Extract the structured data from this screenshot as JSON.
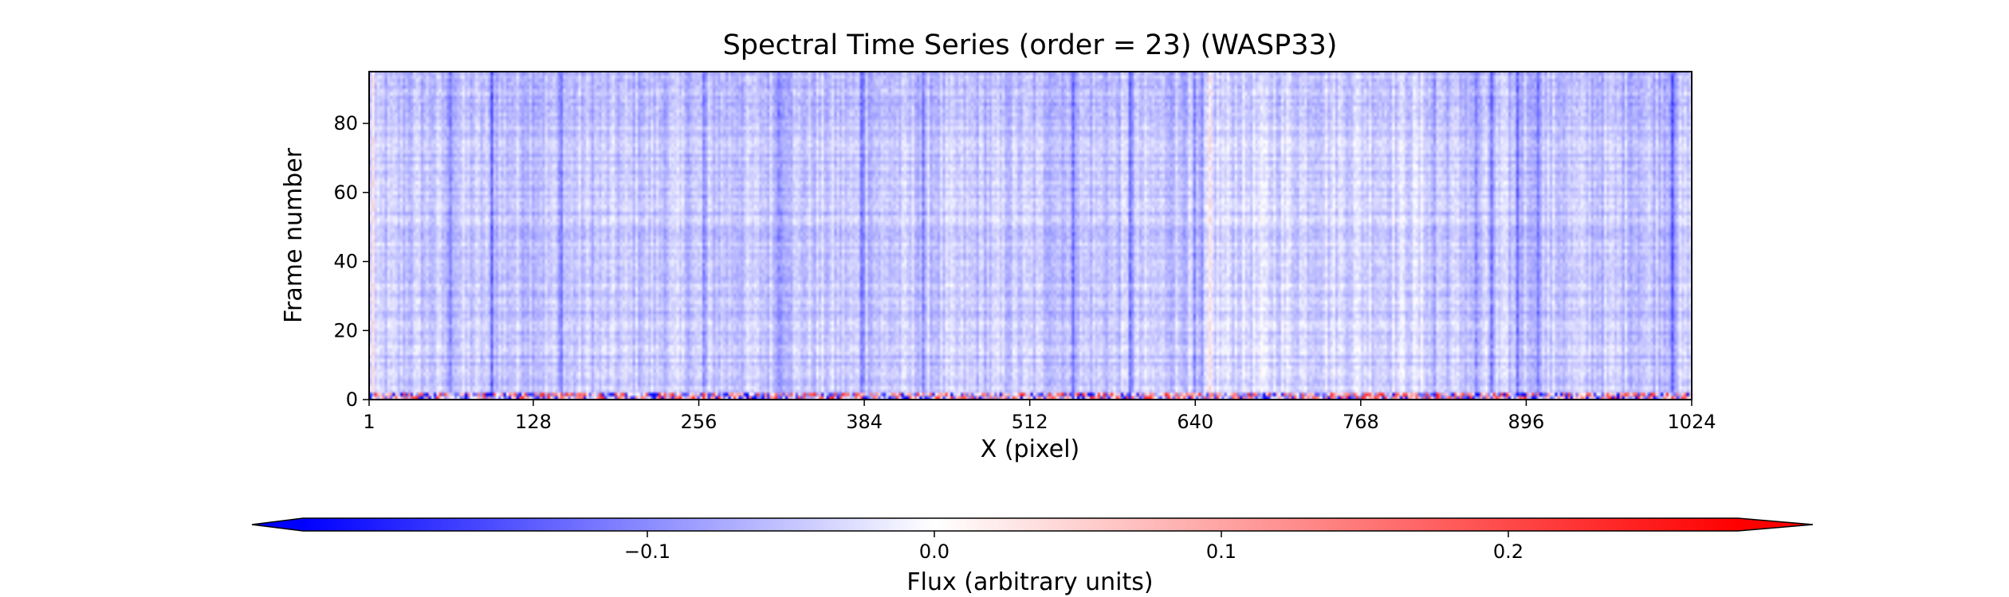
{
  "chart_data": {
    "type": "heatmap",
    "title": "Spectral Time Series (order = 23) (WASP33)",
    "xlabel": "X (pixel)",
    "ylabel": "Frame number",
    "xlim": [
      1,
      1024
    ],
    "ylim": [
      0,
      95
    ],
    "x_ticks": [
      {
        "value": 1,
        "label": "1"
      },
      {
        "value": 128,
        "label": "128"
      },
      {
        "value": 256,
        "label": "256"
      },
      {
        "value": 384,
        "label": "384"
      },
      {
        "value": 512,
        "label": "512"
      },
      {
        "value": 640,
        "label": "640"
      },
      {
        "value": 768,
        "label": "768"
      },
      {
        "value": 896,
        "label": "896"
      },
      {
        "value": 1024,
        "label": "1024"
      }
    ],
    "y_ticks": [
      {
        "value": 0,
        "label": "0"
      },
      {
        "value": 20,
        "label": "20"
      },
      {
        "value": 40,
        "label": "40"
      },
      {
        "value": 60,
        "label": "60"
      },
      {
        "value": 80,
        "label": "80"
      }
    ],
    "colormap": "bwr",
    "colors": {
      "low": "#0000ff",
      "mid": "#ffffff",
      "high": "#ff0000"
    },
    "colorbar": {
      "label": "Flux (arbitrary units)",
      "orientation": "horizontal",
      "vmin": -0.22,
      "vmax": 0.28,
      "extend": "both",
      "ticks": [
        {
          "value": -0.1,
          "label": "−0.1"
        },
        {
          "value": 0.0,
          "label": "0.0"
        },
        {
          "value": 0.1,
          "label": "0.1"
        },
        {
          "value": 0.2,
          "label": "0.2"
        }
      ]
    },
    "features": {
      "background_flux": -0.05,
      "absorption_lines_x": [
        62,
        95,
        148,
        260,
        318,
        382,
        430,
        545,
        590,
        640,
        645,
        825,
        858,
        870,
        890,
        905,
        1010
      ],
      "emission_columns_x": [
        3,
        652
      ],
      "hot_pixel_rows": [
        0,
        1
      ]
    }
  }
}
